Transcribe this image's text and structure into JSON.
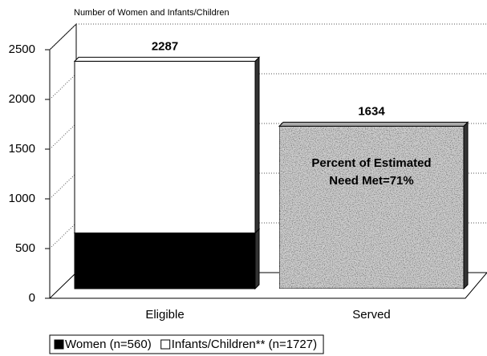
{
  "chart_data": {
    "type": "bar3d_stacked",
    "y_axis_label": "Number of Women and Infants/Children",
    "categories": [
      "Eligible",
      "Served"
    ],
    "series": [
      {
        "name": "Women (n=560)",
        "color": "#000000",
        "values": [
          560,
          null
        ]
      },
      {
        "name": "Infants/Children** (n=1727)",
        "color": "#ffffff",
        "values": [
          1727,
          null
        ]
      },
      {
        "color": "#cfcfcf",
        "values": [
          null,
          1634
        ]
      }
    ],
    "totals": [
      2287,
      1634
    ],
    "annotation": [
      "Percent of Estimated",
      "Need Met=71%"
    ],
    "ylim": [
      0,
      2500
    ],
    "yticks": [
      0,
      500,
      1000,
      1500,
      2000,
      2500
    ],
    "grid": true,
    "legend": "bottom"
  }
}
